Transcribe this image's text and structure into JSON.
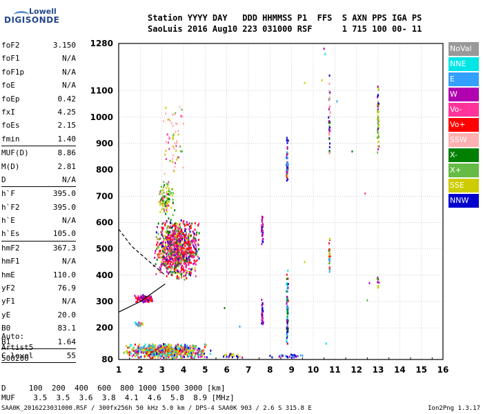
{
  "logo": {
    "line1": "Lowell",
    "line2": "DIGISONDE"
  },
  "header": {
    "line1": "Station YYYY DAY   DDD HHMMSS P1  FFS  S AXN PPS IGA PS",
    "line2": "SaoLuis 2016 Aug10 223 031000 RSF      1 715 100 00- 11"
  },
  "params": [
    {
      "label": "foF2",
      "value": "3.150",
      "sep_after": false
    },
    {
      "label": "foF1",
      "value": "N/A",
      "sep_after": false
    },
    {
      "label": "foF1p",
      "value": "N/A",
      "sep_after": false
    },
    {
      "label": "foE",
      "value": "N/A",
      "sep_after": false
    },
    {
      "label": "foEp",
      "value": "0.42",
      "sep_after": false
    },
    {
      "label": "fxI",
      "value": "4.25",
      "sep_after": false
    },
    {
      "label": "foEs",
      "value": "2.15",
      "sep_after": false
    },
    {
      "label": "fmin",
      "value": "1.40",
      "sep_after": true
    },
    {
      "label": "MUF(D)",
      "value": "8.86",
      "sep_after": false
    },
    {
      "label": "M(D)",
      "value": "2.81",
      "sep_after": false
    },
    {
      "label": "D",
      "value": "N/A",
      "sep_after": true
    },
    {
      "label": "h`F",
      "value": "395.0",
      "sep_after": false
    },
    {
      "label": "h`F2",
      "value": "395.0",
      "sep_after": false
    },
    {
      "label": "h`E",
      "value": "N/A",
      "sep_after": false
    },
    {
      "label": "h`Es",
      "value": "105.0",
      "sep_after": true
    },
    {
      "label": "hmF2",
      "value": "367.3",
      "sep_after": false
    },
    {
      "label": "hmF1",
      "value": "N/A",
      "sep_after": false
    },
    {
      "label": "hmE",
      "value": "110.0",
      "sep_after": false
    },
    {
      "label": "yF2",
      "value": "76.9",
      "sep_after": false
    },
    {
      "label": "yF1",
      "value": "N/A",
      "sep_after": false
    },
    {
      "label": "yE",
      "value": "20.0",
      "sep_after": false
    },
    {
      "label": "B0",
      "value": "83.1",
      "sep_after": false
    },
    {
      "label": "B1",
      "value": "1.64",
      "sep_after": true
    },
    {
      "label": "C-level",
      "value": "55",
      "sep_after": true
    }
  ],
  "auto": {
    "line1": "Auto:",
    "line2": "Artist5",
    "line3": "500200"
  },
  "dtable": {
    "row1": "D     100  200  400  600  800 1000 1500 3000 [km]",
    "row2": "MUF    3.5  3.5  3.6  3.8  4.1  4.6  5.8  8.9 [MHz]"
  },
  "footer": {
    "left": "SAA0K_2016223031000.RSF / 300fx256h 50 kHz 5.0 km / DPS-4 SAA0K 903 / 2.6 S 315.8 E",
    "right": "Ion2Png 1.3.17"
  },
  "legend": [
    {
      "label": "NoVal",
      "color": "#999999"
    },
    {
      "label": "NNE",
      "color": "#00e5e5"
    },
    {
      "label": "E",
      "color": "#33a0ff"
    },
    {
      "label": "W",
      "color": "#b000b0"
    },
    {
      "label": "Vo-",
      "color": "#ff3399"
    },
    {
      "label": "Vo+",
      "color": "#ff0000"
    },
    {
      "label": "SSW",
      "color": "#ffb0b0"
    },
    {
      "label": "X-",
      "color": "#008000"
    },
    {
      "label": "X+",
      "color": "#66bb44"
    },
    {
      "label": "SSE",
      "color": "#cccc00"
    },
    {
      "label": "NNW",
      "color": "#0000cc"
    }
  ],
  "chart_data": {
    "type": "scatter",
    "x_ticks": [
      1,
      2,
      3,
      4,
      5,
      6,
      7,
      8,
      9,
      10,
      11,
      12,
      13,
      14,
      15,
      16
    ],
    "y_ticks": [
      80,
      200,
      300,
      400,
      500,
      600,
      700,
      800,
      900,
      1000,
      1100,
      1280
    ],
    "xlim": [
      1,
      16
    ],
    "ylim": [
      80,
      1280
    ],
    "grid": true,
    "trace_lines": [
      {
        "style": "solid",
        "points": [
          [
            1.0,
            260
          ],
          [
            2.0,
            300
          ],
          [
            3.15,
            367
          ]
        ]
      },
      {
        "style": "dashed",
        "points": [
          [
            1.0,
            575
          ],
          [
            1.6,
            510
          ],
          [
            2.3,
            460
          ],
          [
            3.15,
            400
          ]
        ]
      }
    ],
    "echo_clusters": [
      {
        "x": [
          1.7,
          2.6
        ],
        "y": [
          295,
          325
        ],
        "weights": {
          "#ff0000": 3,
          "#b000b0": 3,
          "#ff3399": 2,
          "#0000cc": 1
        },
        "n": 140
      },
      {
        "x": [
          2.6,
          4.8
        ],
        "y": [
          380,
          620
        ],
        "weights": {
          "#ff0000": 3,
          "#ff3399": 4,
          "#b000b0": 3,
          "#008000": 2,
          "#0000cc": 1,
          "#cccc00": 2,
          "#66bb44": 1
        },
        "n": 950
      },
      {
        "x": [
          2.8,
          3.6
        ],
        "y": [
          620,
          760
        ],
        "weights": {
          "#cccc00": 3,
          "#66bb44": 2,
          "#ff3399": 1,
          "#008000": 1
        },
        "n": 90
      },
      {
        "x": [
          3.0,
          4.1
        ],
        "y": [
          760,
          1070
        ],
        "weights": {
          "#ffb0b0": 3,
          "#cccc00": 2,
          "#ff3399": 1,
          "#66bb44": 1
        },
        "n": 60
      },
      {
        "x": [
          1.2,
          5.3
        ],
        "y": [
          82,
          140
        ],
        "weights": {
          "#cccc00": 4,
          "#ff0000": 2,
          "#33a0ff": 2,
          "#00e5e5": 2,
          "#ff3399": 2,
          "#b000b0": 1,
          "#0000cc": 1,
          "#66bb44": 1
        },
        "n": 700
      },
      {
        "x": [
          1.7,
          2.2
        ],
        "y": [
          205,
          222
        ],
        "weights": {
          "#ff3399": 2,
          "#cccc00": 2,
          "#00e5e5": 1,
          "#33a0ff": 1
        },
        "n": 30
      },
      {
        "x": [
          7.6,
          7.7
        ],
        "y": [
          190,
          320
        ],
        "weights": {
          "#b000b0": 3,
          "#0000cc": 2,
          "#ff3399": 1
        },
        "n": 40
      },
      {
        "x": [
          7.6,
          7.7
        ],
        "y": [
          500,
          640
        ],
        "weights": {
          "#b000b0": 3,
          "#ff3399": 2,
          "#0000cc": 1
        },
        "n": 35
      },
      {
        "x": [
          8.75,
          8.85
        ],
        "y": [
          100,
          440
        ],
        "weights": {
          "#0000cc": 2,
          "#33a0ff": 2,
          "#008000": 2,
          "#00e5e5": 1,
          "#b000b0": 1,
          "#ff0000": 1
        },
        "n": 80
      },
      {
        "x": [
          8.75,
          8.85
        ],
        "y": [
          720,
          930
        ],
        "weights": {
          "#0000cc": 3,
          "#33a0ff": 2,
          "#b000b0": 2,
          "#cccc00": 1,
          "#ff0000": 1
        },
        "n": 60
      },
      {
        "x": [
          10.7,
          10.8
        ],
        "y": [
          390,
          550
        ],
        "weights": {
          "#ff0000": 2,
          "#33a0ff": 2,
          "#cccc00": 2,
          "#008000": 1
        },
        "n": 30
      },
      {
        "x": [
          10.7,
          10.8
        ],
        "y": [
          850,
          1180
        ],
        "weights": {
          "#0000cc": 2,
          "#ff3399": 1,
          "#b000b0": 1,
          "#008000": 1,
          "#ffb0b0": 2
        },
        "n": 45
      },
      {
        "x": [
          12.95,
          13.05
        ],
        "y": [
          340,
          410
        ],
        "weights": {
          "#008000": 1,
          "#b000b0": 1,
          "#cccc00": 1
        },
        "n": 10
      },
      {
        "x": [
          12.95,
          13.05
        ],
        "y": [
          840,
          1160
        ],
        "weights": {
          "#cccc00": 3,
          "#66bb44": 2,
          "#b000b0": 1,
          "#0000cc": 1
        },
        "n": 55
      },
      {
        "x": [
          5.7,
          6.8
        ],
        "y": [
          85,
          105
        ],
        "weights": {
          "#cccc00": 2,
          "#0000cc": 1,
          "#b000b0": 1
        },
        "n": 20
      },
      {
        "x": [
          7.9,
          9.6
        ],
        "y": [
          85,
          100
        ],
        "weights": {
          "#0000cc": 2,
          "#b000b0": 1,
          "#33a0ff": 1
        },
        "n": 25
      }
    ],
    "isolated_points": [
      {
        "x": 10.5,
        "y": 1260,
        "color": "#b000b0"
      },
      {
        "x": 10.55,
        "y": 1240,
        "color": "#00e5e5"
      },
      {
        "x": 10.4,
        "y": 1140,
        "color": "#cccc00"
      },
      {
        "x": 9.6,
        "y": 1130,
        "color": "#cccc00"
      },
      {
        "x": 11.1,
        "y": 1060,
        "color": "#33a0ff"
      },
      {
        "x": 11.8,
        "y": 870,
        "color": "#008000"
      },
      {
        "x": 12.4,
        "y": 710,
        "color": "#ff3399"
      },
      {
        "x": 12.6,
        "y": 370,
        "color": "#b000b0"
      },
      {
        "x": 12.5,
        "y": 305,
        "color": "#66bb44"
      },
      {
        "x": 10.6,
        "y": 140,
        "color": "#00e5e5"
      },
      {
        "x": 6.6,
        "y": 205,
        "color": "#33a0ff"
      },
      {
        "x": 5.9,
        "y": 275,
        "color": "#008000"
      },
      {
        "x": 9.6,
        "y": 450,
        "color": "#cccc00"
      }
    ]
  }
}
